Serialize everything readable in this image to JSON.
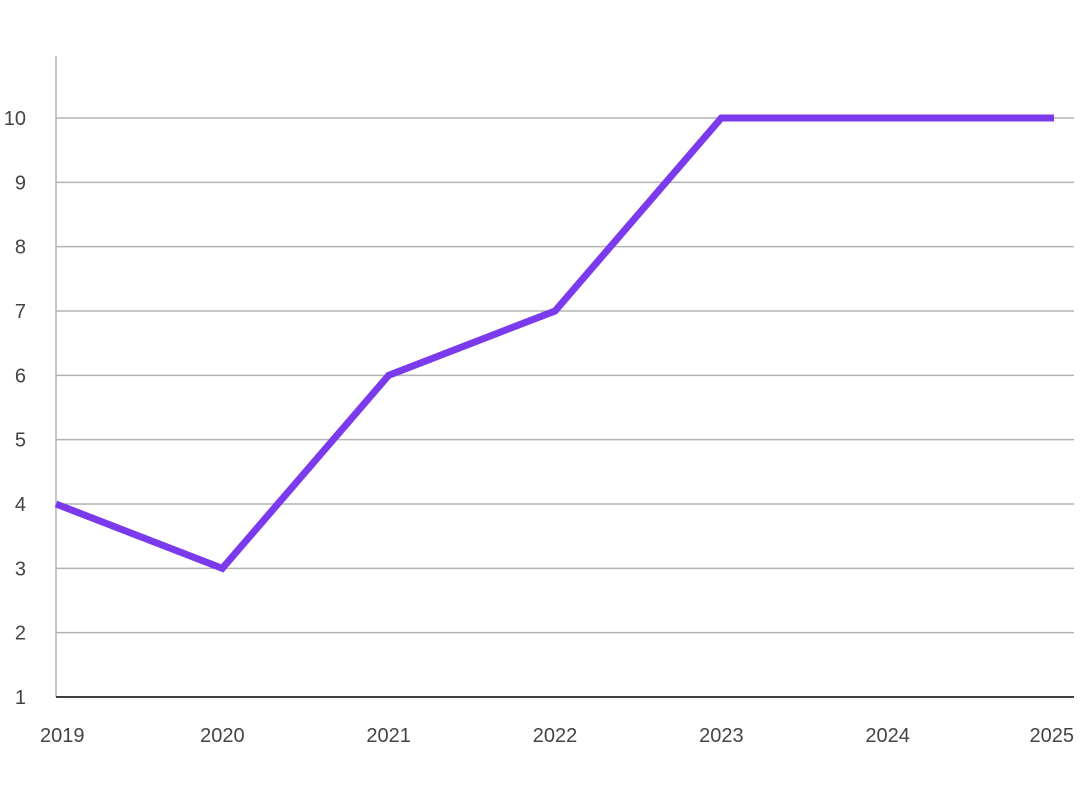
{
  "chart_data": {
    "type": "line",
    "title": "",
    "xlabel": "",
    "ylabel": "",
    "categories": [
      "2019",
      "2020",
      "2021",
      "2022",
      "2023",
      "2024",
      "2025"
    ],
    "series": [
      {
        "values": [
          4,
          3,
          6,
          7,
          10,
          10,
          10
        ],
        "color": "#7c3aed"
      }
    ],
    "ylim": [
      1,
      10
    ],
    "yticks": [
      1,
      2,
      3,
      4,
      5,
      6,
      7,
      8,
      9,
      10
    ],
    "grid": true,
    "legend": "none"
  }
}
